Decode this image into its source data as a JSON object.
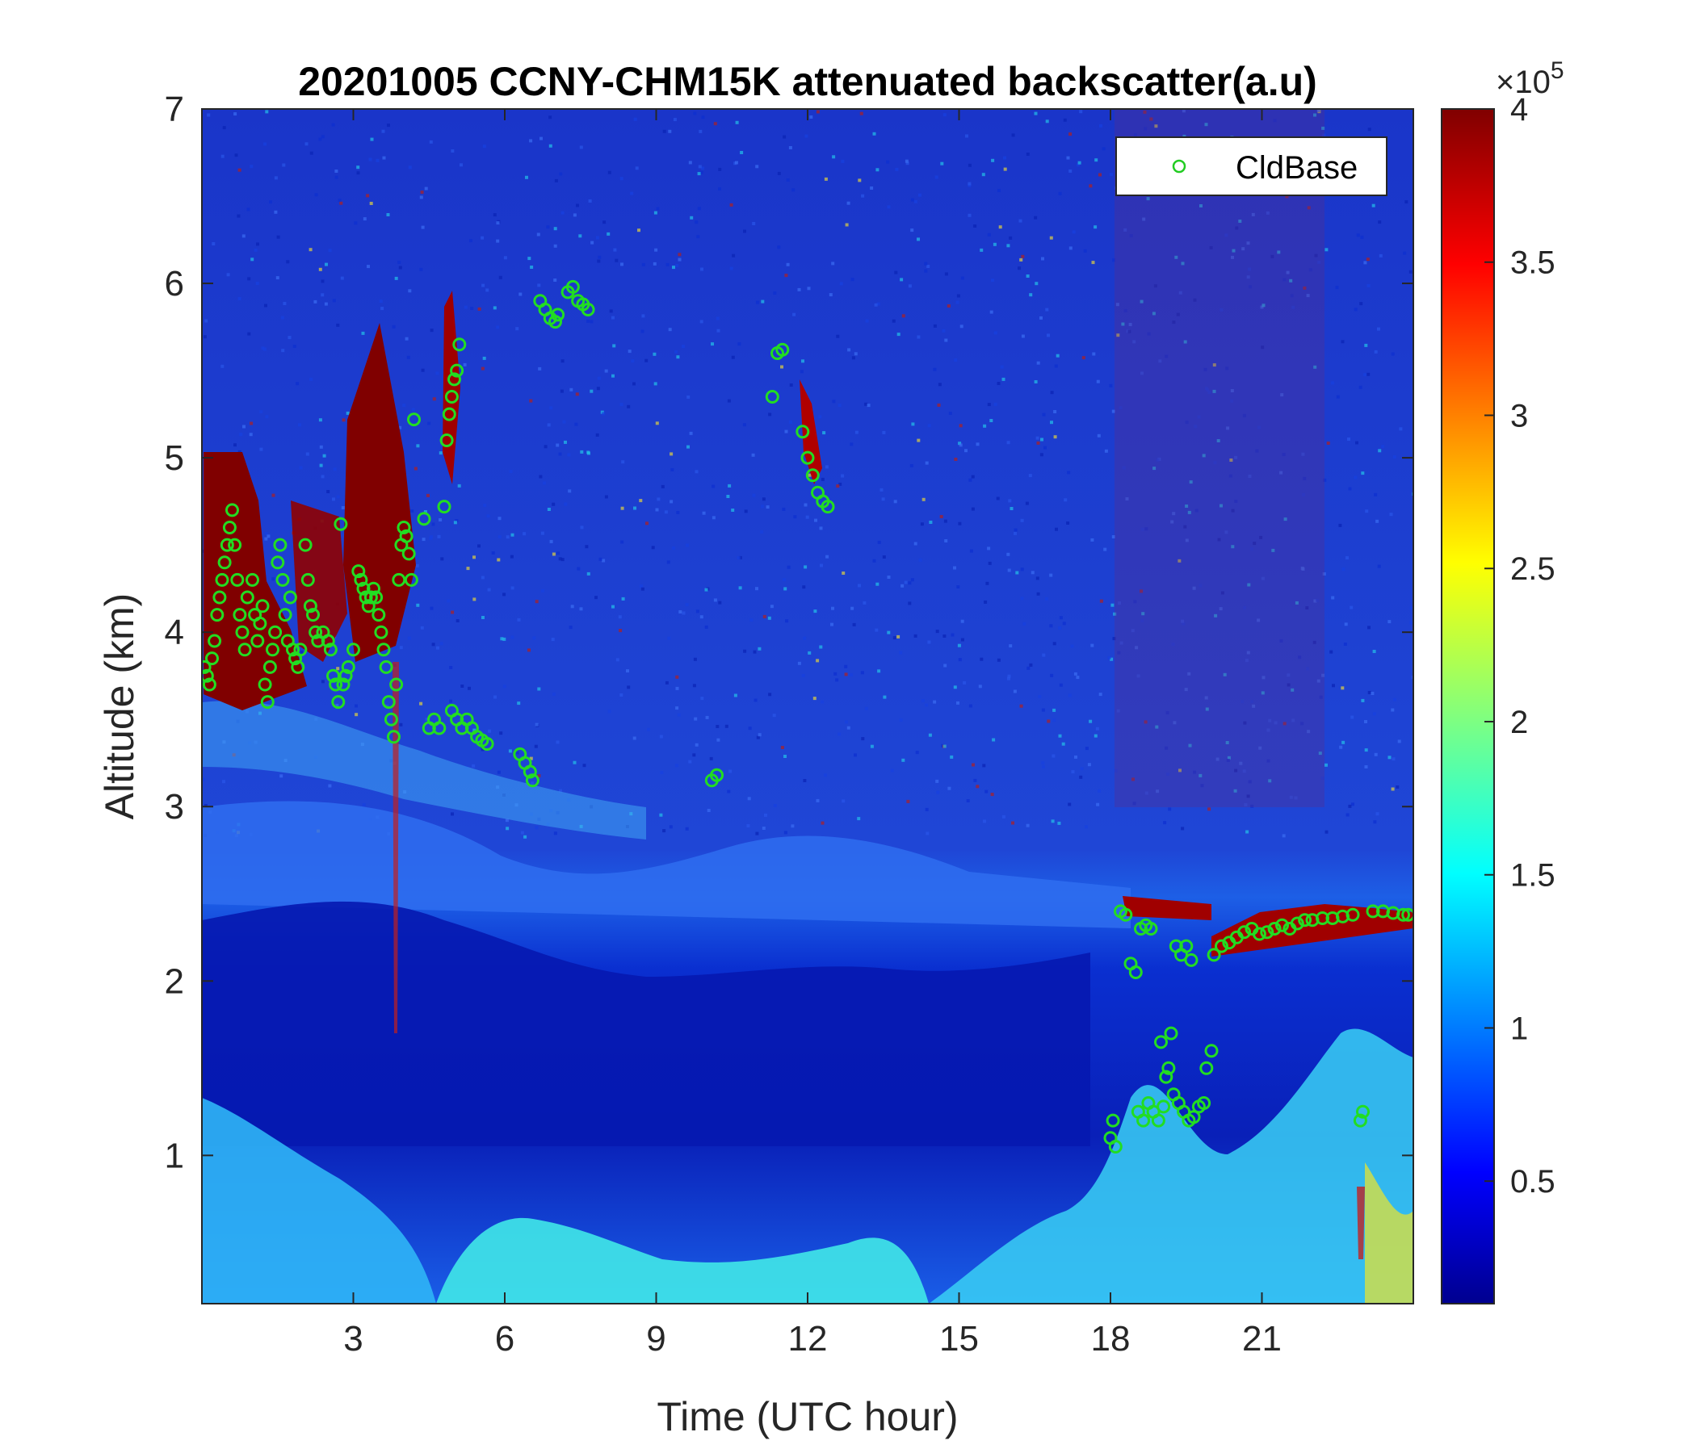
{
  "chart_data": {
    "type": "heatmap",
    "title": "20201005 CCNY-CHM15K attenuated backscatter(a.u)",
    "xlabel": "Time (UTC hour)",
    "ylabel": "Altitude (km)",
    "xlim": [
      0,
      24
    ],
    "ylim": [
      0.15,
      7
    ],
    "x_ticks": [
      3,
      6,
      9,
      12,
      15,
      18,
      21
    ],
    "y_ticks": [
      1,
      2,
      3,
      4,
      5,
      6,
      7
    ],
    "colorbar": {
      "colormap": "jet",
      "range": [
        0.1,
        4
      ],
      "ticks": [
        0.5,
        1,
        1.5,
        2,
        2.5,
        3,
        3.5,
        4
      ],
      "exponent_label": "×10",
      "exponent": "5"
    },
    "legend": {
      "position": "top-right",
      "entries": [
        "CldBase"
      ]
    },
    "colors": {
      "cloud_base_marker": "#22dd22",
      "legend_marker": "#22cc22"
    },
    "series": [
      {
        "name": "CldBase",
        "marker": "circle",
        "points": [
          [
            0.05,
            3.8
          ],
          [
            0.1,
            3.75
          ],
          [
            0.15,
            3.7
          ],
          [
            0.2,
            3.85
          ],
          [
            0.25,
            3.95
          ],
          [
            0.3,
            4.1
          ],
          [
            0.35,
            4.2
          ],
          [
            0.4,
            4.3
          ],
          [
            0.45,
            4.4
          ],
          [
            0.5,
            4.5
          ],
          [
            0.55,
            4.6
          ],
          [
            0.6,
            4.7
          ],
          [
            0.65,
            4.5
          ],
          [
            0.7,
            4.3
          ],
          [
            0.75,
            4.1
          ],
          [
            0.8,
            4.0
          ],
          [
            0.85,
            3.9
          ],
          [
            0.9,
            4.2
          ],
          [
            1.0,
            4.3
          ],
          [
            1.05,
            4.1
          ],
          [
            1.1,
            3.95
          ],
          [
            1.15,
            4.05
          ],
          [
            1.2,
            4.15
          ],
          [
            1.25,
            3.7
          ],
          [
            1.3,
            3.6
          ],
          [
            1.35,
            3.8
          ],
          [
            1.4,
            3.9
          ],
          [
            1.45,
            4.0
          ],
          [
            1.5,
            4.4
          ],
          [
            1.55,
            4.5
          ],
          [
            1.6,
            4.3
          ],
          [
            1.65,
            4.1
          ],
          [
            1.7,
            3.95
          ],
          [
            1.75,
            4.2
          ],
          [
            1.8,
            3.9
          ],
          [
            1.85,
            3.85
          ],
          [
            1.9,
            3.8
          ],
          [
            1.95,
            3.9
          ],
          [
            2.05,
            4.5
          ],
          [
            2.1,
            4.3
          ],
          [
            2.15,
            4.15
          ],
          [
            2.2,
            4.1
          ],
          [
            2.25,
            4.0
          ],
          [
            2.3,
            3.95
          ],
          [
            2.4,
            4.0
          ],
          [
            2.5,
            3.95
          ],
          [
            2.55,
            3.9
          ],
          [
            2.6,
            3.75
          ],
          [
            2.65,
            3.7
          ],
          [
            2.7,
            3.6
          ],
          [
            2.75,
            4.62
          ],
          [
            2.8,
            3.7
          ],
          [
            2.85,
            3.75
          ],
          [
            2.9,
            3.8
          ],
          [
            3.0,
            3.9
          ],
          [
            3.1,
            4.35
          ],
          [
            3.15,
            4.3
          ],
          [
            3.2,
            4.25
          ],
          [
            3.25,
            4.2
          ],
          [
            3.3,
            4.15
          ],
          [
            3.35,
            4.2
          ],
          [
            3.4,
            4.25
          ],
          [
            3.45,
            4.2
          ],
          [
            3.5,
            4.1
          ],
          [
            3.55,
            4.0
          ],
          [
            3.6,
            3.9
          ],
          [
            3.65,
            3.8
          ],
          [
            3.7,
            3.6
          ],
          [
            3.75,
            3.5
          ],
          [
            3.8,
            3.4
          ],
          [
            3.85,
            3.7
          ],
          [
            3.9,
            4.3
          ],
          [
            3.95,
            4.5
          ],
          [
            4.0,
            4.6
          ],
          [
            4.05,
            4.55
          ],
          [
            4.1,
            4.45
          ],
          [
            4.15,
            4.3
          ],
          [
            4.2,
            5.22
          ],
          [
            4.4,
            4.65
          ],
          [
            4.5,
            3.45
          ],
          [
            4.6,
            3.5
          ],
          [
            4.7,
            3.45
          ],
          [
            4.8,
            4.72
          ],
          [
            4.85,
            5.1
          ],
          [
            4.9,
            5.25
          ],
          [
            4.95,
            5.35
          ],
          [
            5.0,
            5.45
          ],
          [
            5.05,
            5.5
          ],
          [
            5.1,
            5.65
          ],
          [
            4.95,
            3.55
          ],
          [
            5.05,
            3.5
          ],
          [
            5.15,
            3.45
          ],
          [
            5.25,
            3.5
          ],
          [
            5.35,
            3.45
          ],
          [
            5.45,
            3.4
          ],
          [
            5.55,
            3.38
          ],
          [
            5.65,
            3.36
          ],
          [
            6.3,
            3.3
          ],
          [
            6.4,
            3.25
          ],
          [
            6.5,
            3.2
          ],
          [
            6.55,
            3.15
          ],
          [
            6.7,
            5.9
          ],
          [
            6.8,
            5.85
          ],
          [
            6.9,
            5.8
          ],
          [
            7.0,
            5.78
          ],
          [
            7.05,
            5.82
          ],
          [
            7.25,
            5.95
          ],
          [
            7.35,
            5.98
          ],
          [
            7.45,
            5.9
          ],
          [
            7.55,
            5.88
          ],
          [
            7.65,
            5.85
          ],
          [
            10.1,
            3.15
          ],
          [
            10.2,
            3.18
          ],
          [
            11.3,
            5.35
          ],
          [
            11.4,
            5.6
          ],
          [
            11.5,
            5.62
          ],
          [
            11.9,
            5.15
          ],
          [
            12.0,
            5.0
          ],
          [
            12.1,
            4.9
          ],
          [
            12.2,
            4.8
          ],
          [
            12.3,
            4.75
          ],
          [
            12.4,
            4.72
          ],
          [
            18.0,
            1.1
          ],
          [
            18.05,
            1.2
          ],
          [
            18.1,
            1.05
          ],
          [
            18.2,
            2.4
          ],
          [
            18.3,
            2.38
          ],
          [
            18.4,
            2.1
          ],
          [
            18.5,
            2.05
          ],
          [
            18.6,
            2.3
          ],
          [
            18.7,
            2.32
          ],
          [
            18.8,
            2.3
          ],
          [
            18.55,
            1.25
          ],
          [
            18.65,
            1.2
          ],
          [
            18.75,
            1.3
          ],
          [
            18.85,
            1.25
          ],
          [
            18.95,
            1.2
          ],
          [
            19.05,
            1.28
          ],
          [
            19.15,
            1.5
          ],
          [
            19.25,
            1.35
          ],
          [
            19.35,
            1.3
          ],
          [
            19.45,
            1.25
          ],
          [
            19.55,
            1.2
          ],
          [
            19.65,
            1.22
          ],
          [
            19.75,
            1.28
          ],
          [
            19.85,
            1.3
          ],
          [
            19.0,
            1.65
          ],
          [
            19.2,
            1.7
          ],
          [
            19.1,
            1.45
          ],
          [
            19.3,
            2.2
          ],
          [
            19.4,
            2.15
          ],
          [
            19.5,
            2.2
          ],
          [
            19.6,
            2.12
          ],
          [
            19.9,
            1.5
          ],
          [
            20.0,
            1.6
          ],
          [
            20.05,
            2.15
          ],
          [
            20.2,
            2.2
          ],
          [
            20.35,
            2.22
          ],
          [
            20.5,
            2.25
          ],
          [
            20.65,
            2.28
          ],
          [
            20.8,
            2.3
          ],
          [
            20.95,
            2.27
          ],
          [
            21.1,
            2.28
          ],
          [
            21.25,
            2.3
          ],
          [
            21.4,
            2.32
          ],
          [
            21.55,
            2.3
          ],
          [
            21.7,
            2.33
          ],
          [
            21.85,
            2.35
          ],
          [
            22.0,
            2.35
          ],
          [
            22.2,
            2.36
          ],
          [
            22.4,
            2.36
          ],
          [
            22.6,
            2.37
          ],
          [
            22.8,
            2.38
          ],
          [
            22.95,
            1.2
          ],
          [
            23.0,
            1.25
          ],
          [
            23.2,
            2.4
          ],
          [
            23.4,
            2.4
          ],
          [
            23.6,
            2.39
          ],
          [
            23.8,
            2.38
          ],
          [
            23.9,
            2.38
          ]
        ]
      }
    ]
  }
}
